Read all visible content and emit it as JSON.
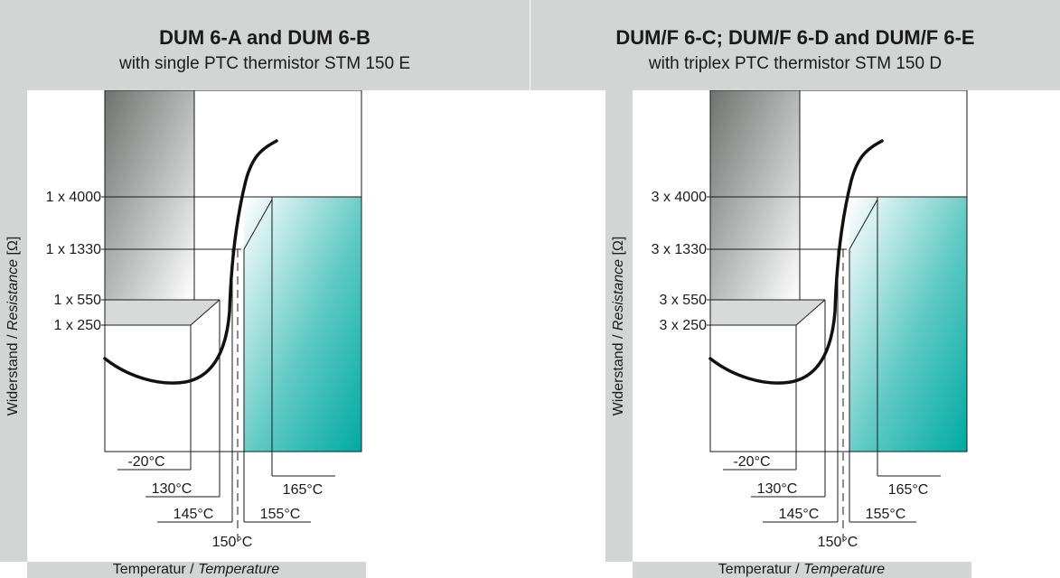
{
  "left_diagram": {
    "title": "DUM 6-A and DUM 6-B",
    "subtitle": "with single PTC thermistor STM 150 E",
    "resistance_marks": [
      "1 x 4000",
      "1 x 1330",
      "1 x 550",
      "1 x 250"
    ],
    "temperature_marks": [
      "-20°C",
      "130°C",
      "145°C",
      "150°C",
      "155°C",
      "165°C"
    ],
    "y_axis_label": {
      "normal": "Widerstand / ",
      "italic": "Resistance",
      "unit": " [Ω]"
    },
    "x_axis_label": {
      "normal": "Temperatur / ",
      "italic": "Temperature"
    }
  },
  "right_diagram": {
    "title": "DUM/F 6-C; DUM/F 6-D and DUM/F 6-E",
    "subtitle": "with triplex PTC thermistor STM 150 D",
    "resistance_marks": [
      "3 x 4000",
      "3 x 1330",
      "3 x 550",
      "3 x 250"
    ],
    "temperature_marks": [
      "-20°C",
      "130°C",
      "145°C",
      "150°C",
      "155°C",
      "165°C"
    ],
    "y_axis_label": {
      "normal": "Widerstand / ",
      "italic": "Resistance",
      "unit": " [Ω]"
    },
    "x_axis_label": {
      "normal": "Temperatur / ",
      "italic": "Temperature"
    }
  },
  "colors": {
    "header_band": "#d2d5d3",
    "dark_gradient": "#6e7370",
    "teal_gradient": "#00aaa3",
    "curve": "#111111"
  }
}
